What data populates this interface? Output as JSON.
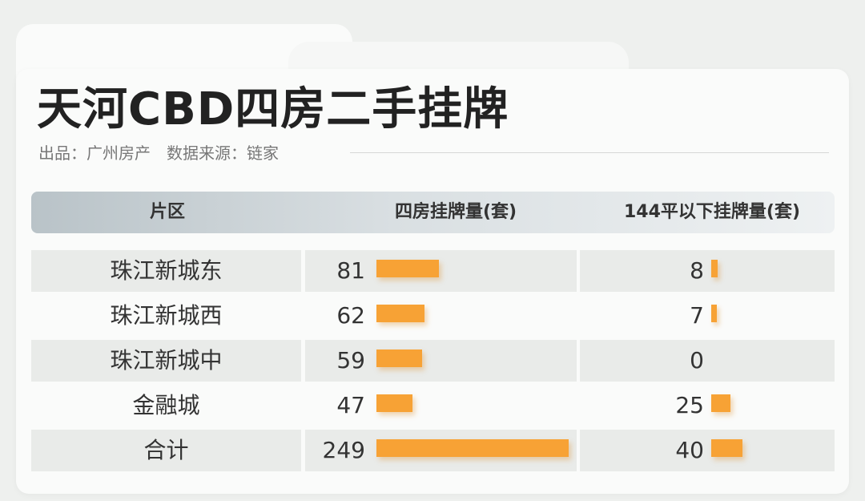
{
  "title": "天河CBD四房二手挂牌",
  "subtitle": {
    "producer": "出品：广州房产",
    "source": "数据来源：链家"
  },
  "colors": {
    "bar": "#f7a235",
    "header_start": "#b9c3c8",
    "row_shade": "#e9ebe9"
  },
  "chart_data": {
    "type": "bar",
    "columns": [
      "片区",
      "四房挂牌量(套)",
      "144平以下挂牌量(套)"
    ],
    "categories": [
      "珠江新城东",
      "珠江新城西",
      "珠江新城中",
      "金融城",
      "合计"
    ],
    "series": [
      {
        "name": "四房挂牌量(套)",
        "values": [
          81,
          62,
          59,
          47,
          249
        ]
      },
      {
        "name": "144平以下挂牌量(套)",
        "values": [
          8,
          7,
          0,
          25,
          40
        ]
      }
    ]
  }
}
